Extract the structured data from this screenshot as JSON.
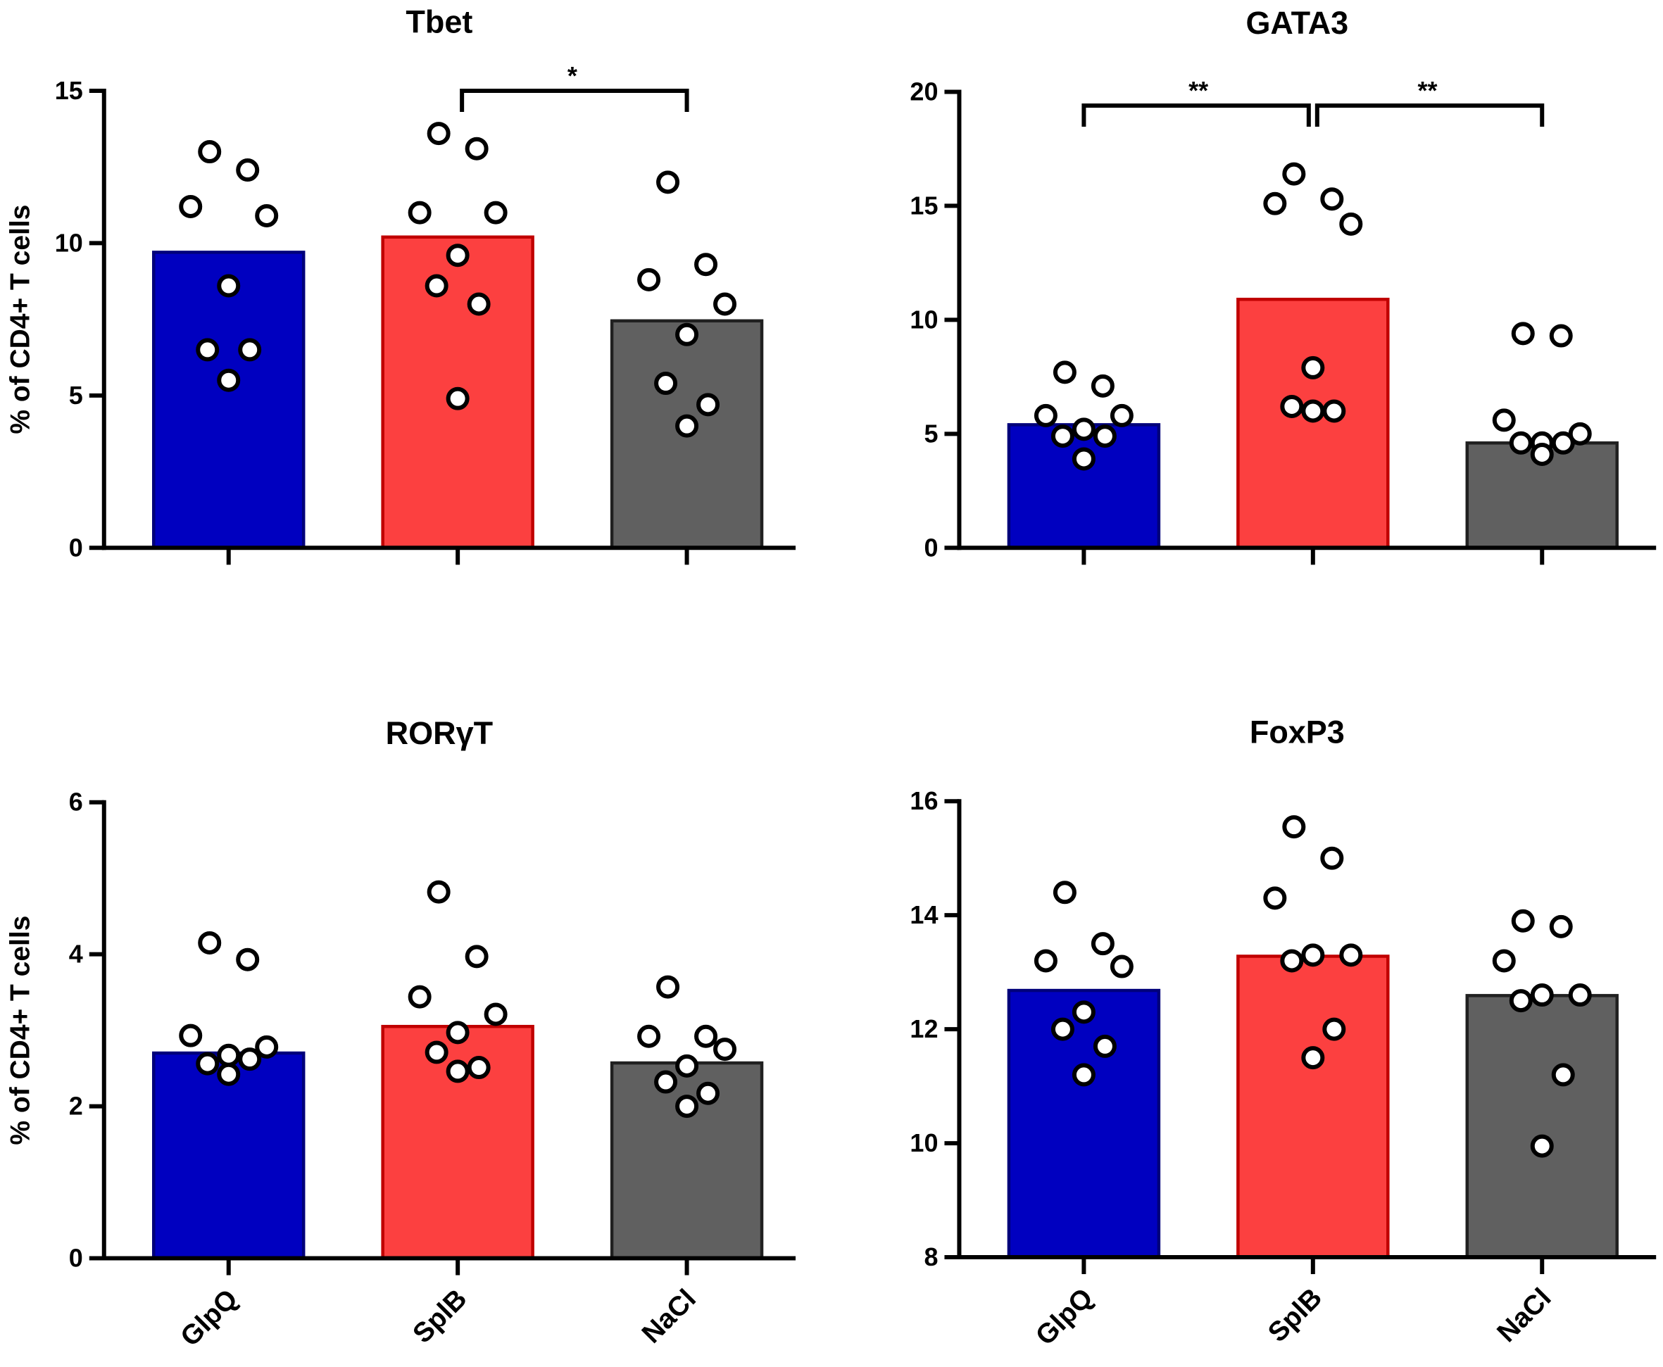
{
  "chart_data": [
    {
      "type": "bar",
      "title": "Tbet",
      "y_label": "% of CD4+ T cells",
      "categories": [
        null,
        null,
        null
      ],
      "values": [
        9.7,
        10.2,
        7.45
      ],
      "colors": [
        "#0000c0",
        "#fc4040",
        "#606060"
      ],
      "edge_colors": [
        "#00007a",
        "#c00000",
        "#202020"
      ],
      "points": [
        [
          13.0,
          12.4,
          11.2,
          10.9,
          8.6,
          6.5,
          6.5,
          5.5
        ],
        [
          13.6,
          13.1,
          11.0,
          11.0,
          9.6,
          8.6,
          8.0,
          4.9
        ],
        [
          12.0,
          9.3,
          8.8,
          8.0,
          7.0,
          5.4,
          4.7,
          4.0
        ]
      ],
      "ylim": [
        0,
        15
      ],
      "yticks": [
        0,
        5,
        10,
        15
      ],
      "annotations": [
        "*"
      ]
    },
    {
      "type": "bar",
      "title": "GATA3",
      "categories": [
        null,
        null,
        null
      ],
      "values": [
        5.4,
        10.9,
        4.6
      ],
      "colors": [
        "#0000c0",
        "#fc4040",
        "#606060"
      ],
      "edge_colors": [
        "#00007a",
        "#c00000",
        "#202020"
      ],
      "points": [
        [
          7.7,
          7.1,
          5.8,
          5.8,
          5.2,
          4.9,
          4.9,
          3.9
        ],
        [
          16.4,
          15.3,
          15.1,
          14.2,
          7.9,
          6.2,
          6.0,
          6.0
        ],
        [
          9.4,
          9.3,
          5.6,
          5.0,
          4.6,
          4.6,
          4.6,
          4.1
        ]
      ],
      "ylim": [
        0,
        20
      ],
      "yticks": [
        0,
        5,
        10,
        15,
        20
      ],
      "annotations": [
        "**",
        "**"
      ]
    },
    {
      "type": "bar",
      "title": "RORγT",
      "y_label": "% of CD4+ T cells",
      "categories": [
        "GlpQ",
        "SplB",
        "NaCl"
      ],
      "values": [
        2.7,
        3.05,
        2.57
      ],
      "colors": [
        "#0000c0",
        "#fc4040",
        "#606060"
      ],
      "edge_colors": [
        "#00007a",
        "#c00000",
        "#202020"
      ],
      "points": [
        [
          4.15,
          3.93,
          2.93,
          2.78,
          2.67,
          2.56,
          2.62,
          2.42
        ],
        [
          4.82,
          3.97,
          3.44,
          3.21,
          2.97,
          2.71,
          2.51,
          2.46
        ],
        [
          3.57,
          2.92,
          2.92,
          2.75,
          2.53,
          2.32,
          2.17,
          2.0
        ]
      ],
      "ylim": [
        0,
        6
      ],
      "yticks": [
        0,
        2,
        4,
        6
      ]
    },
    {
      "type": "bar",
      "title": "FoxP3",
      "categories": [
        "GlpQ",
        "SplB",
        "NaCl"
      ],
      "values": [
        12.68,
        13.28,
        12.59
      ],
      "colors": [
        "#0000c0",
        "#fc4040",
        "#606060"
      ],
      "edge_colors": [
        "#00007a",
        "#c00000",
        "#202020"
      ],
      "points": [
        [
          14.4,
          13.5,
          13.2,
          13.1,
          12.3,
          12.0,
          11.7,
          11.2
        ],
        [
          15.55,
          15.0,
          14.3,
          13.3,
          13.3,
          13.2,
          12.0,
          11.5
        ],
        [
          13.9,
          13.8,
          13.2,
          12.6,
          12.6,
          12.5,
          11.2,
          9.95
        ]
      ],
      "ylim": [
        8,
        16
      ],
      "yticks": [
        8,
        10,
        12,
        14,
        16
      ]
    }
  ]
}
